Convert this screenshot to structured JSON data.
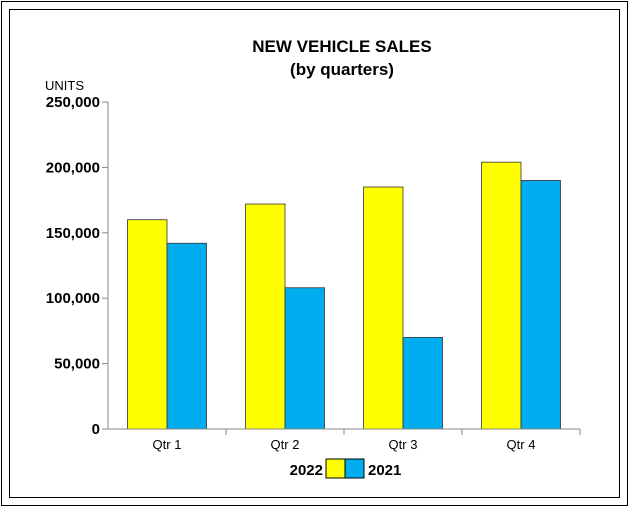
{
  "chart_data": {
    "type": "bar",
    "title": "NEW VEHICLE SALES",
    "subtitle": "(by quarters)",
    "ylabel": "UNITS",
    "xlabel": "",
    "categories": [
      "Qtr 1",
      "Qtr 2",
      "Qtr 3",
      "Qtr 4"
    ],
    "series": [
      {
        "name": "2022",
        "color": "#ffff00",
        "values": [
          160000,
          172000,
          185000,
          204000
        ]
      },
      {
        "name": "2021",
        "color": "#00aeef",
        "values": [
          142000,
          108000,
          70000,
          190000
        ]
      }
    ],
    "ylim": [
      0,
      250000
    ],
    "yticks": [
      0,
      50000,
      100000,
      150000,
      200000,
      250000
    ],
    "ytick_labels": [
      "0",
      "50,000",
      "100,000",
      "150,000",
      "200,000",
      "250,000"
    ],
    "grid": false,
    "legend_position": "bottom-center"
  }
}
